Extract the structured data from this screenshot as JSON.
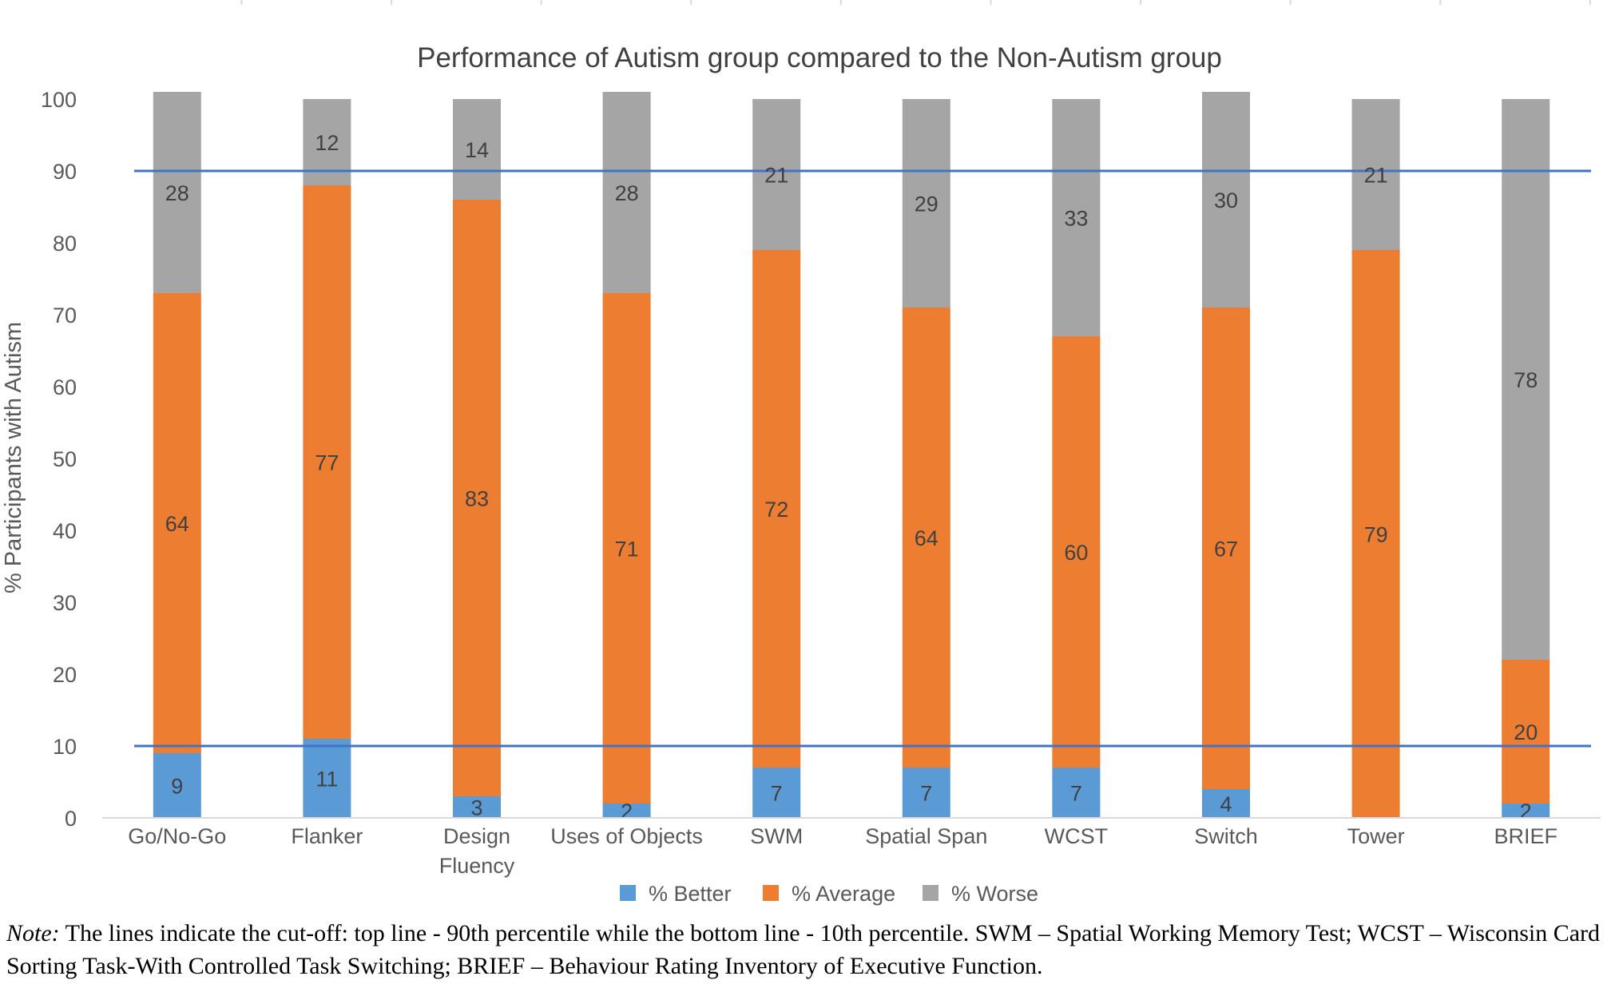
{
  "chart_data": {
    "type": "bar",
    "stacked": true,
    "title": "Performance of Autism group compared to the Non-Autism group",
    "ylabel": "% Participants with Autism",
    "xlabel": "",
    "ylim": [
      0,
      100
    ],
    "yticks": [
      0,
      10,
      20,
      30,
      40,
      50,
      60,
      70,
      80,
      90,
      100
    ],
    "categories": [
      "Go/No-Go",
      "Flanker",
      "Design Fluency",
      "Uses of Objects",
      "SWM",
      "Spatial Span",
      "WCST",
      "Switch",
      "Tower",
      "BRIEF"
    ],
    "series": [
      {
        "name": "% Better",
        "color": "#5B9BD5",
        "values": [
          9,
          11,
          3,
          2,
          7,
          7,
          7,
          4,
          0,
          2
        ]
      },
      {
        "name": "% Average",
        "color": "#ED7D31",
        "values": [
          64,
          77,
          83,
          71,
          72,
          64,
          60,
          67,
          79,
          20
        ]
      },
      {
        "name": "% Worse",
        "color": "#A5A5A5",
        "values": [
          28,
          12,
          14,
          28,
          21,
          29,
          33,
          30,
          21,
          78
        ]
      }
    ],
    "reference_lines": [
      90,
      10
    ],
    "reference_line_color": "#4472C4",
    "legend": "bottom",
    "grid": false
  },
  "note": {
    "lead": "Note:",
    "text": " The lines indicate the cut-off: top line - 90th percentile while the bottom line - 10th percentile. SWM – Spatial Working Memory Test; WCST – Wisconsin Card Sorting Task-With Controlled Task Switching; BRIEF – Behaviour Rating Inventory of Executive Function."
  }
}
